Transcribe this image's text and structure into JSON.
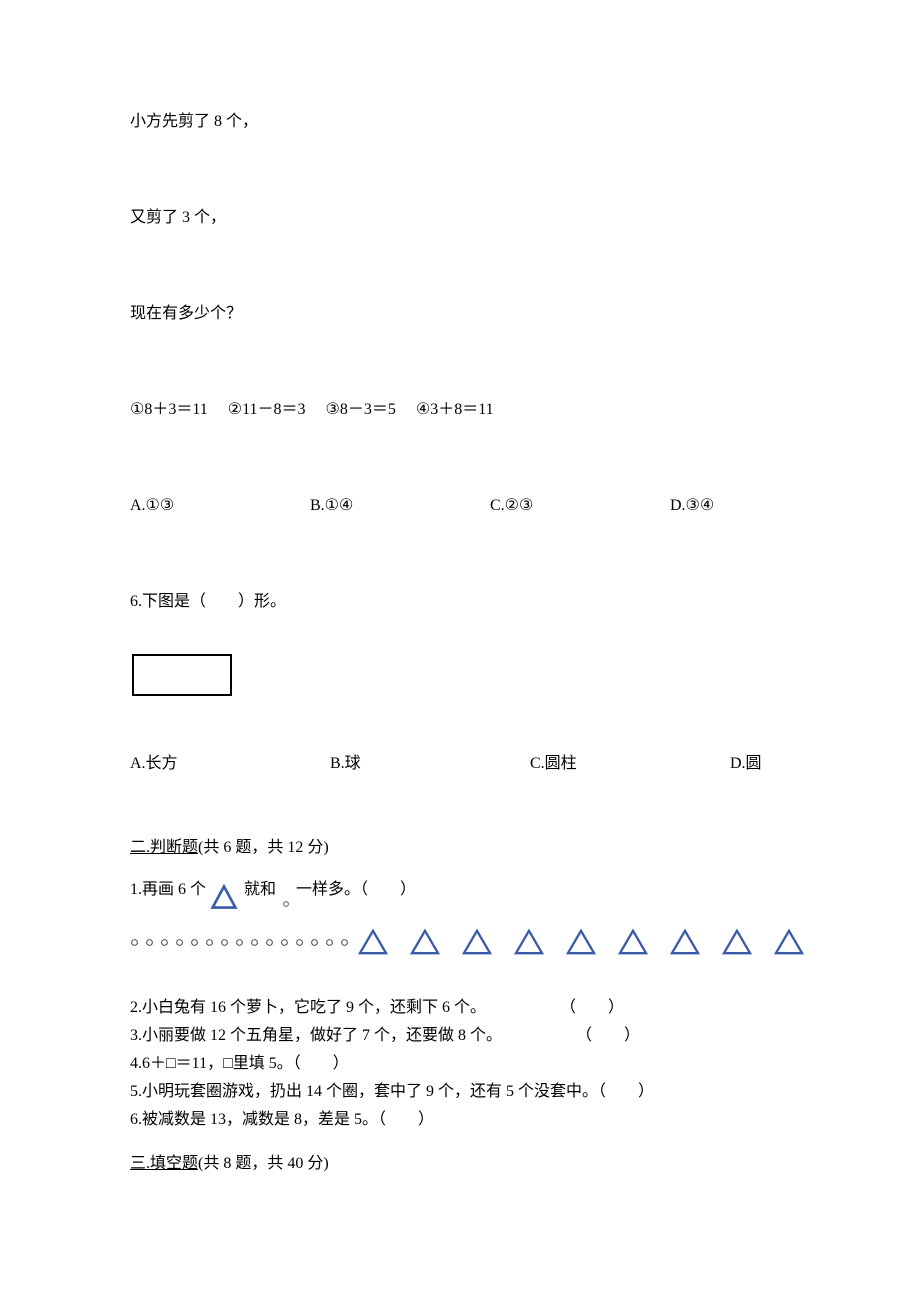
{
  "q5": {
    "line1": "小方先剪了 8 个，",
    "line2": "又剪了 3 个，",
    "line3": "现在有多少个？",
    "expressions": "①8＋3＝11　 ②11－8＝3　 ③8－3＝5　 ④3＋8＝11",
    "options": {
      "a": "A.①③",
      "b": "B.①④",
      "c": "C.②③",
      "d": "D.③④"
    }
  },
  "q6": {
    "stem": "6.下图是（　　）形。",
    "options": {
      "a": "A.长方",
      "b": "B.球",
      "c": "C.圆柱",
      "d": "D.圆"
    }
  },
  "section2": {
    "header_prefix": "二.",
    "header_title": "判断题",
    "header_suffix": "(共 6 题，共 12 分)",
    "q1_part1": "1.再画 6 个",
    "q1_part2": "就和",
    "q1_part3": "一样多。（　　）",
    "circles_count": 15,
    "triangles_count": 9,
    "q2_text": "2.小白兔有 16 个萝卜，它吃了 9 个，还剩下 6 个。",
    "q2_paren": "（　　）",
    "q3_text": "3.小丽要做 12 个五角星，做好了 7 个，还要做 8 个。",
    "q3_paren": "（　　）",
    "q4_text": "4.6＋□＝11，□里填 5。（　　）",
    "q5_text": "5.小明玩套圈游戏，扔出 14 个圈，套中了 9 个，还有 5 个没套中。（　　）",
    "q6_text": "6.被减数是 13，减数是 8，差是 5。（　　）"
  },
  "section3": {
    "header_prefix": "三.",
    "header_title": "填空题",
    "header_suffix": "(共 8 题，共 40 分)"
  },
  "styling": {
    "triangle_stroke": "#3a5ba8",
    "triangle_stroke_width": 2.5,
    "circle_stroke": "#555555",
    "circle_fill": "#ffffff",
    "rect_border_color": "#000000"
  }
}
